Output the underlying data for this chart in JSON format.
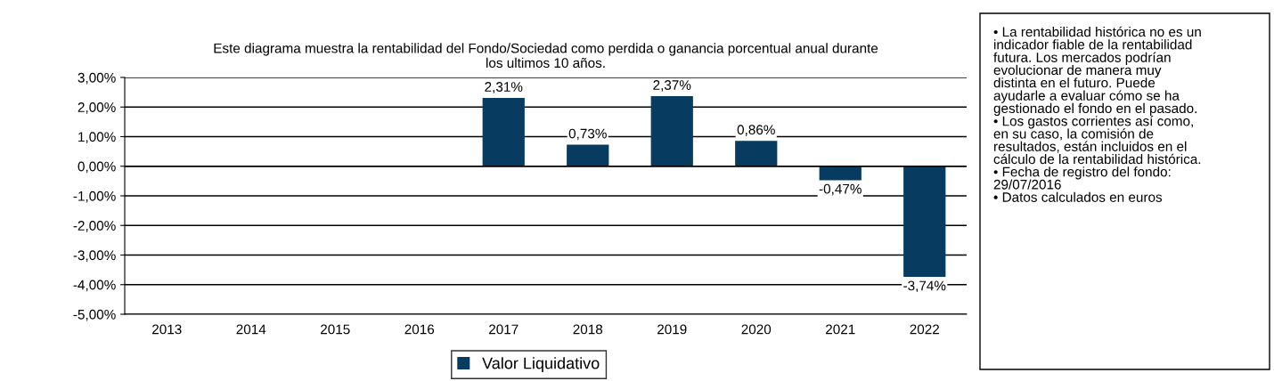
{
  "chart_data": {
    "type": "bar",
    "title": "Este diagrama muestra la rentabilidad del Fondo/Sociedad como perdida o ganancia porcentual anual durante\nlos ultimos 10 años.",
    "categories": [
      "2013",
      "2014",
      "2015",
      "2016",
      "2017",
      "2018",
      "2019",
      "2020",
      "2021",
      "2022"
    ],
    "series": [
      {
        "name": "Valor Liquidativo",
        "color": "#073b5f",
        "values": [
          null,
          null,
          null,
          null,
          2.31,
          0.73,
          2.37,
          0.86,
          -0.47,
          -3.74
        ],
        "value_labels": [
          null,
          null,
          null,
          null,
          "2,31%",
          "0,73%",
          "2,37%",
          "0,86%",
          "-0,47%",
          "-3,74%"
        ]
      }
    ],
    "ylim": [
      -5,
      3
    ],
    "yticks": [
      {
        "value": 3,
        "label": "3,00%"
      },
      {
        "value": 2,
        "label": "2,00%"
      },
      {
        "value": 1,
        "label": "1,00%"
      },
      {
        "value": 0,
        "label": "0,00%"
      },
      {
        "value": -1,
        "label": "-1,00%"
      },
      {
        "value": -2,
        "label": "-2,00%"
      },
      {
        "value": -3,
        "label": "-3,00%"
      },
      {
        "value": -4,
        "label": "-4,00%"
      },
      {
        "value": -5,
        "label": "-5,00%"
      }
    ],
    "grid": "y",
    "legend": "bottom",
    "annotations": [
      "• La rentabilidad histórica no es un\nindicador fiable de la rentabilidad\nfutura. Los mercados podrían\nevolucionar de manera muy\ndistinta en el futuro. Puede\nayudarle a evaluar cómo se ha\ngestionado el fondo en el pasado.\n• Los gastos corrientes así como,\nen su caso, la comisión de\nresultados, están incluidos en el\ncálculo de la rentabilidad histórica.\n• Fecha de registro del fondo:\n29/07/2016\n• Datos calculados en euros"
    ]
  }
}
